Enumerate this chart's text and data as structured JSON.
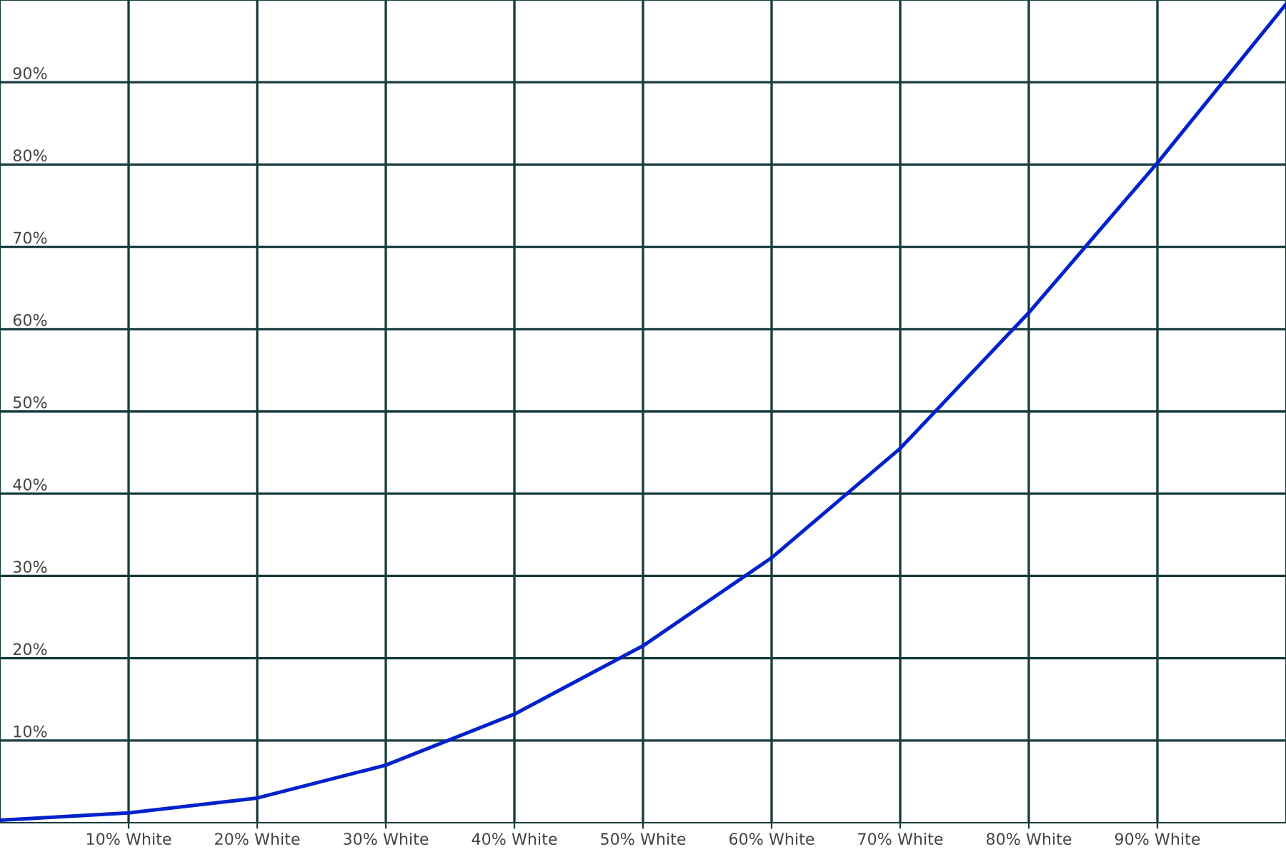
{
  "chart_data": {
    "type": "line",
    "x": [
      0,
      10,
      20,
      30,
      40,
      50,
      60,
      70,
      80,
      90,
      100
    ],
    "series": [
      {
        "color": "#0022cc",
        "values": [
          0.3,
          1.2,
          3,
          7,
          13.2,
          21.5,
          32.2,
          45.5,
          62,
          80.2,
          99.5
        ]
      }
    ],
    "xlim": [
      0,
      100
    ],
    "ylim": [
      0,
      100
    ],
    "xticks": [
      {
        "value": 10,
        "label": "10% White"
      },
      {
        "value": 20,
        "label": "20% White"
      },
      {
        "value": 30,
        "label": "30% White"
      },
      {
        "value": 40,
        "label": "40% White"
      },
      {
        "value": 50,
        "label": "50% White"
      },
      {
        "value": 60,
        "label": "60% White"
      },
      {
        "value": 70,
        "label": "70% White"
      },
      {
        "value": 80,
        "label": "80% White"
      },
      {
        "value": 90,
        "label": "90% White"
      }
    ],
    "yticks": [
      {
        "value": 10,
        "label": "10%"
      },
      {
        "value": 20,
        "label": "20%"
      },
      {
        "value": 30,
        "label": "30%"
      },
      {
        "value": 40,
        "label": "40%"
      },
      {
        "value": 50,
        "label": "50%"
      },
      {
        "value": 60,
        "label": "60%"
      },
      {
        "value": 70,
        "label": "70%"
      },
      {
        "value": 80,
        "label": "80%"
      },
      {
        "value": 90,
        "label": "90%"
      }
    ],
    "grid": true,
    "marker": "none",
    "line_style": "solid"
  }
}
